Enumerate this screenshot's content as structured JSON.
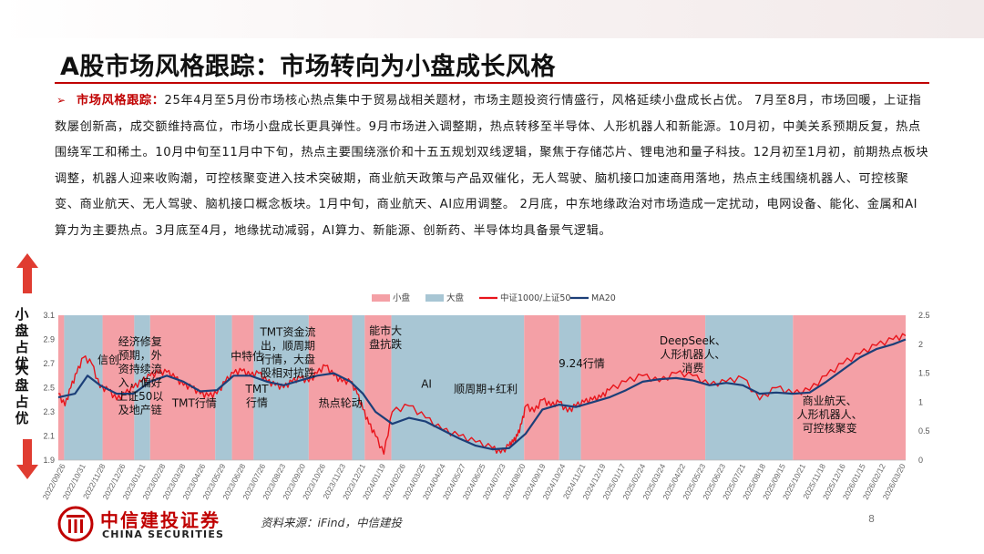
{
  "header": {
    "title": "A股市场风格跟踪：市场转向为小盘成长风格"
  },
  "body": {
    "bullet": "➢",
    "lead": "市场风格跟踪：",
    "text": "25年4月至5月份市场核心热点集中于贸易战相关题材，市场主题投资行情盛行，风格延续小盘成长占优。 7月至8月，市场回暖，上证指数屡创新高，成交额维持高位，市场小盘成长更具弹性。9月市场进入调整期，热点转移至半导体、人形机器人和新能源。10月初，中美关系预期反复，热点围绕军工和稀土。10月中旬至11月中下旬，热点主要围绕涨价和十五五规划双线逻辑，聚焦于存储芯片、锂电池和量子科技。12月初至1月初，前期热点板块调整，机器人迎来收购潮，可控核聚变进入技术突破期，商业航天政策与产品双催化，无人驾驶、脑机接口加速商用落地，热点主线围绕机器人、可控核聚变、商业航天、无人驾驶、脑机接口概念板块。1月中旬，商业航天、AI应用调整。 2月底，中东地缘政治对市场造成一定扰动，电网设备、能化、金属和AI算力为主要热点。3月底至4月，地缘扰动减弱，AI算力、新能源、创新药、半导体均具备景气逻辑。"
  },
  "side_labels": {
    "small_cap": "小盘占优",
    "large_cap": "大盘占优"
  },
  "footer": {
    "logo_cn": "中信建投证券",
    "logo_en": "CHINA SECURITIES",
    "source": "资料来源：iFind，中信建投",
    "page": "8"
  },
  "colors": {
    "brand_red": "#c00000",
    "small_band": "#f4a0a6",
    "large_band": "#a8c6d4",
    "ratio_line": "#e8141b",
    "ma_line": "#1c3f78"
  },
  "chart_data": {
    "type": "line",
    "legend": [
      "小盘",
      "大盘",
      "中证1000/上证50",
      "MA20"
    ],
    "legend_position": "top",
    "x_labels": [
      "2022/09/26",
      "2022/10/31",
      "2022/11/28",
      "2022/12/26",
      "2023/01/31",
      "2023/02/28",
      "2023/03/28",
      "2023/04/26",
      "2023/05/29",
      "2023/06/28",
      "2023/07/26",
      "2023/08/23",
      "2023/09/20",
      "2023/10/26",
      "2023/11/23",
      "2023/12/21",
      "2024/01/19",
      "2024/02/26",
      "2024/03/25",
      "2024/04/24",
      "2024/05/27",
      "2024/06/25",
      "2024/07/23",
      "2024/08/20",
      "2024/09/19",
      "2024/10/24",
      "2024/11/21",
      "2024/12/19",
      "2025/01/17",
      "2025/02/24",
      "2025/03/24",
      "2025/04/22",
      "2025/05/23",
      "2025/06/23",
      "2025/07/21",
      "2025/08/18",
      "2025/09/15",
      "2025/10/21",
      "2025/11/18",
      "2025/12/16",
      "2026/01/15",
      "2026/02/12",
      "2026/03/20"
    ],
    "y_left": {
      "min": 1.9,
      "max": 3.1,
      "ticks": [
        "1.9",
        "2.1",
        "2.3",
        "2.5",
        "2.7",
        "2.9",
        "3.1"
      ]
    },
    "y_right": {
      "min": 0,
      "max": 2.5,
      "ticks": [
        "0",
        "0.5",
        "1",
        "1.5",
        "2",
        "2.5"
      ]
    },
    "bands": [
      {
        "style": "small",
        "start": 0,
        "end": 7
      },
      {
        "style": "large",
        "start": 7,
        "end": 53
      },
      {
        "style": "small",
        "start": 53,
        "end": 91
      },
      {
        "style": "large",
        "start": 91,
        "end": 110
      },
      {
        "style": "small",
        "start": 110,
        "end": 188
      },
      {
        "style": "large",
        "start": 188,
        "end": 208
      },
      {
        "style": "small",
        "start": 208,
        "end": 234
      },
      {
        "style": "large",
        "start": 234,
        "end": 300
      },
      {
        "style": "small",
        "start": 300,
        "end": 352
      },
      {
        "style": "large",
        "start": 352,
        "end": 367
      },
      {
        "style": "small",
        "start": 367,
        "end": 399
      },
      {
        "style": "large",
        "start": 399,
        "end": 558
      },
      {
        "style": "small",
        "start": 558,
        "end": 600
      },
      {
        "style": "large",
        "start": 600,
        "end": 626
      },
      {
        "style": "small",
        "start": 626,
        "end": 775
      },
      {
        "style": "large",
        "start": 775,
        "end": 880
      },
      {
        "style": "small",
        "start": 880,
        "end": 1015
      }
    ],
    "series": [
      {
        "name": "中证1000/上证50",
        "x": [
          0,
          8,
          15,
          22,
          30,
          40,
          50,
          60,
          70,
          80,
          90,
          100,
          110,
          120,
          130,
          140,
          150,
          160,
          170,
          180,
          190,
          200,
          210,
          220,
          230,
          240,
          250,
          260,
          270,
          280,
          290,
          300,
          310,
          320,
          330,
          340,
          350,
          358,
          365,
          372,
          380,
          390,
          400,
          420,
          440,
          460,
          480,
          500,
          520,
          530,
          540,
          545,
          550,
          555,
          560,
          570,
          580,
          590,
          600,
          610,
          620,
          630,
          640,
          650,
          660,
          680,
          700,
          720,
          740,
          760,
          780,
          800,
          820,
          840,
          860,
          880,
          900,
          920,
          940,
          960,
          980,
          1000,
          1015
        ],
        "y": [
          2.45,
          2.35,
          2.5,
          2.62,
          2.75,
          2.7,
          2.5,
          2.48,
          2.4,
          2.45,
          2.5,
          2.55,
          2.6,
          2.62,
          2.63,
          2.58,
          2.52,
          2.5,
          2.45,
          2.43,
          2.45,
          2.55,
          2.62,
          2.64,
          2.6,
          2.62,
          2.55,
          2.52,
          2.5,
          2.55,
          2.58,
          2.55,
          2.62,
          2.68,
          2.6,
          2.55,
          2.55,
          2.45,
          2.32,
          2.2,
          2.1,
          1.95,
          2.3,
          2.35,
          2.25,
          2.15,
          2.1,
          2.05,
          2.0,
          1.96,
          2.02,
          2.05,
          2.1,
          2.2,
          2.35,
          2.3,
          2.4,
          2.35,
          2.38,
          2.3,
          2.35,
          2.38,
          2.4,
          2.42,
          2.48,
          2.55,
          2.6,
          2.55,
          2.62,
          2.6,
          2.52,
          2.55,
          2.58,
          2.4,
          2.5,
          2.45,
          2.48,
          2.6,
          2.7,
          2.78,
          2.85,
          2.9,
          2.93
        ]
      },
      {
        "name": "MA20",
        "x": [
          0,
          20,
          35,
          50,
          70,
          90,
          110,
          130,
          150,
          170,
          190,
          210,
          230,
          250,
          270,
          290,
          310,
          330,
          350,
          365,
          380,
          400,
          420,
          440,
          460,
          480,
          500,
          520,
          540,
          560,
          580,
          600,
          620,
          640,
          660,
          680,
          700,
          720,
          740,
          760,
          780,
          800,
          820,
          840,
          860,
          880,
          900,
          920,
          940,
          960,
          980,
          1000,
          1015
        ],
        "y": [
          2.42,
          2.45,
          2.6,
          2.52,
          2.45,
          2.45,
          2.55,
          2.6,
          2.55,
          2.47,
          2.48,
          2.6,
          2.6,
          2.55,
          2.52,
          2.56,
          2.6,
          2.62,
          2.55,
          2.45,
          2.3,
          2.2,
          2.25,
          2.22,
          2.15,
          2.08,
          2.02,
          1.99,
          2.0,
          2.12,
          2.32,
          2.36,
          2.34,
          2.38,
          2.42,
          2.48,
          2.55,
          2.57,
          2.58,
          2.56,
          2.52,
          2.54,
          2.52,
          2.45,
          2.46,
          2.45,
          2.46,
          2.55,
          2.65,
          2.75,
          2.82,
          2.86,
          2.9
        ]
      }
    ],
    "annotations": [
      {
        "text": "信创",
        "x": 60,
        "y": 2.7
      },
      {
        "text": "经济修复\n预期，外\n资持续流\n入，偏好\n上证50以\n及地产链",
        "x": 98,
        "y": 2.85
      },
      {
        "text": "TMT行情",
        "x": 163,
        "y": 2.34
      },
      {
        "text": "中特估",
        "x": 226,
        "y": 2.73
      },
      {
        "text": "TMT\n行情",
        "x": 238,
        "y": 2.46
      },
      {
        "text": "TMT资金流\n出，顺周期\n行情，大盘\n股相对抗跌",
        "x": 275,
        "y": 2.93
      },
      {
        "text": "热点轮动",
        "x": 338,
        "y": 2.34
      },
      {
        "text": "能市大\n盘抗跌",
        "x": 392,
        "y": 2.94
      },
      {
        "text": "AI",
        "x": 441,
        "y": 2.5
      },
      {
        "text": "顺周期+红利",
        "x": 512,
        "y": 2.46
      },
      {
        "text": "9.24行情",
        "x": 627,
        "y": 2.67
      },
      {
        "text": "DeepSeek、\n人形机器人、\n消费",
        "x": 760,
        "y": 2.86
      },
      {
        "text": "商业航天、\n人形机器人、\n可控核聚变",
        "x": 924,
        "y": 2.36
      }
    ]
  }
}
